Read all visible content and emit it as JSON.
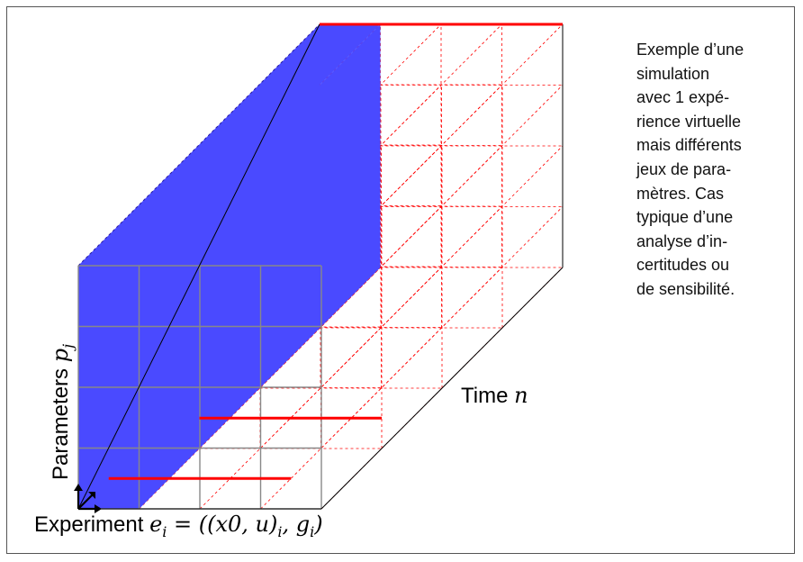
{
  "description": {
    "lines": [
      "Exemple d’une",
      "simulation",
      "avec 1 expé-",
      "rience virtuelle",
      "mais différents",
      "jeux de para-",
      "mètres. Cas",
      "typique d’une",
      "analyse d’in-",
      "certitudes ou",
      "de sensibilité."
    ]
  },
  "axes": {
    "parameters": {
      "word": "Parameters",
      "symbol": "p",
      "subscript": "j"
    },
    "time": {
      "word": "Time",
      "symbol": "n"
    },
    "experiment": {
      "word": "Experiment",
      "lhs": "e",
      "lhs_sub": "i",
      "eq": " = ((",
      "x0": "x0, u",
      "close1": ")",
      "sub1": "i",
      "mid": ", g",
      "sub2": "i",
      "close2": ")"
    }
  },
  "colors": {
    "param_slab": "#4a4aff",
    "grid_red": "#ff0000",
    "grid_gray": "#888888",
    "edge": "#000000"
  }
}
